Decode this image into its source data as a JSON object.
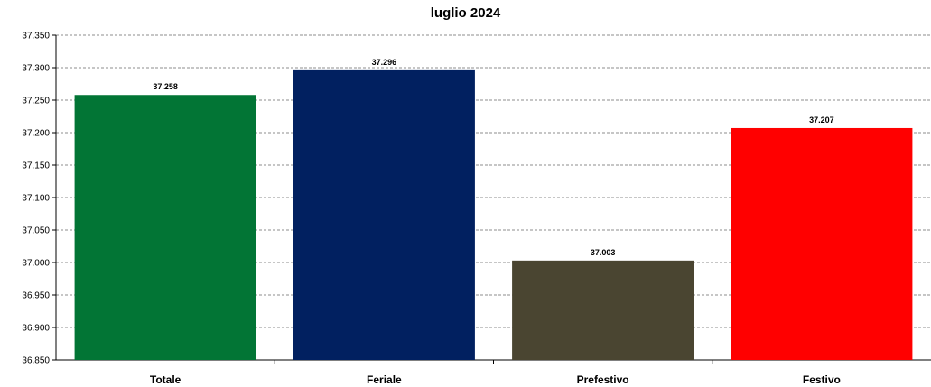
{
  "chart_data": {
    "type": "bar",
    "title": "luglio 2024",
    "xlabel": "",
    "ylabel": "",
    "categories": [
      "Totale",
      "Feriale",
      "Prefestivo",
      "Festivo"
    ],
    "values": [
      37.258,
      37.296,
      37.003,
      37.207
    ],
    "data_labels": [
      "37.258",
      "37.296",
      "37.003",
      "37.207"
    ],
    "colors": [
      "#027535",
      "#012060",
      "#4a4531",
      "#ff0000"
    ],
    "ylim": [
      36.85,
      37.35
    ],
    "yticks": [
      36.85,
      36.9,
      36.95,
      37.0,
      37.05,
      37.1,
      37.15,
      37.2,
      37.25,
      37.3,
      37.35
    ],
    "ytick_labels": [
      "36.850",
      "36.900",
      "36.950",
      "37.000",
      "37.050",
      "37.100",
      "37.150",
      "37.200",
      "37.250",
      "37.300",
      "37.350"
    ],
    "grid": true,
    "grid_style": "dashed",
    "legend": "none"
  }
}
